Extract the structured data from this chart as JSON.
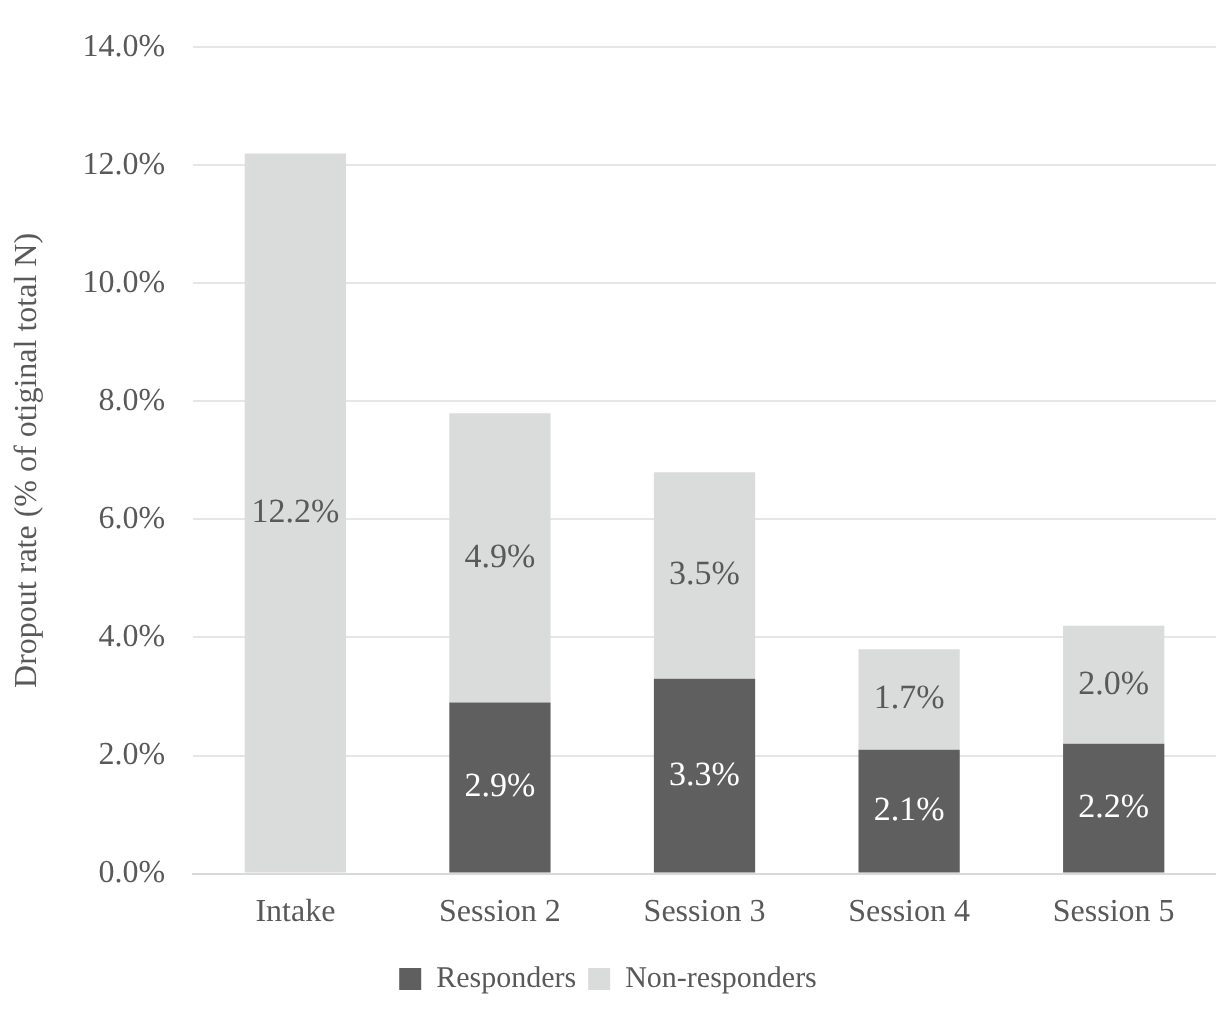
{
  "chart_data": {
    "type": "bar",
    "stacked": true,
    "ylabel": "Dropout rate (% of otiginal total N)",
    "categories": [
      "Intake",
      "Session 2",
      "Session 3",
      "Session 4",
      "Session 5"
    ],
    "series": [
      {
        "name": "Responders",
        "color": "#5f5f5f",
        "values": [
          null,
          2.9,
          3.3,
          2.1,
          2.2
        ],
        "value_labels": [
          null,
          "2.9%",
          "3.3%",
          "2.1%",
          "2.2%"
        ]
      },
      {
        "name": "Non-responders",
        "color": "#dadbdb",
        "values": [
          12.2,
          4.9,
          3.5,
          1.7,
          2.0
        ],
        "value_labels": [
          "12.2%",
          "4.9%",
          "3.5%",
          "1.7%",
          "2.0%"
        ]
      }
    ],
    "ylim": [
      0,
      14
    ],
    "yticks": [
      {
        "value": 0,
        "label": "0.0%"
      },
      {
        "value": 2,
        "label": "2.0%"
      },
      {
        "value": 4,
        "label": "4.0%"
      },
      {
        "value": 6,
        "label": "6.0%"
      },
      {
        "value": 8,
        "label": "8.0%"
      },
      {
        "value": 10,
        "label": "10.0%"
      },
      {
        "value": 12,
        "label": "12.0%"
      },
      {
        "value": 14,
        "label": "14.0%"
      }
    ],
    "grid": "y",
    "legend": "bottom"
  }
}
